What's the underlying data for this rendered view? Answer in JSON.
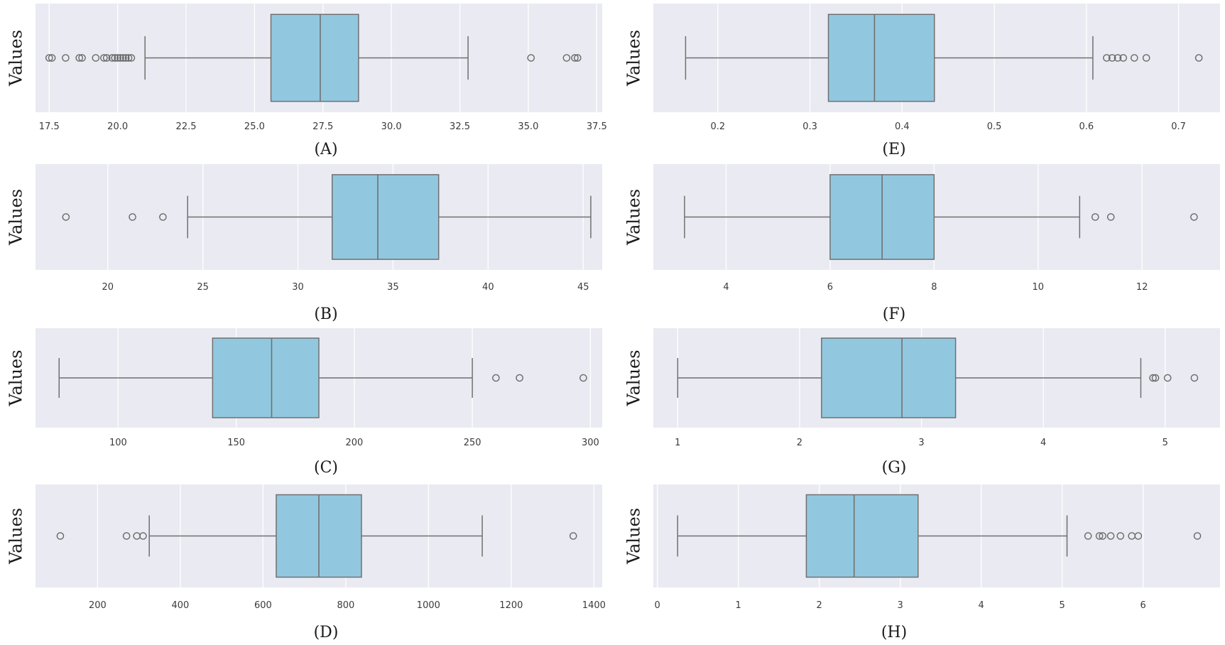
{
  "colors": {
    "plot_background": "#eaeaf2",
    "grid": "#ffffff",
    "box_fill": "#92c8df",
    "line": "#707070",
    "outlier_edge": "#6a6a6a"
  },
  "chart_data": [
    {
      "type": "boxplot",
      "caption": "(A)",
      "ylabel": "Values",
      "xlim": [
        17.0,
        37.7
      ],
      "xticks": [
        17.5,
        20.0,
        22.5,
        25.0,
        27.5,
        30.0,
        32.5,
        35.0,
        37.5
      ],
      "xtick_labels": [
        "17.5",
        "20.0",
        "22.5",
        "25.0",
        "27.5",
        "30.0",
        "32.5",
        "35.0",
        "37.5"
      ],
      "whisker_low": 21.0,
      "q1": 25.6,
      "median": 27.4,
      "q3": 28.8,
      "whisker_high": 32.8,
      "outliers": [
        17.5,
        17.6,
        18.1,
        18.6,
        18.7,
        19.2,
        19.5,
        19.6,
        19.8,
        19.9,
        20.0,
        20.1,
        20.2,
        20.3,
        20.4,
        20.5,
        35.1,
        36.4,
        36.7,
        36.8
      ],
      "grid": true
    },
    {
      "type": "boxplot",
      "caption": "(B)",
      "ylabel": "Values",
      "xlim": [
        16.2,
        46.0
      ],
      "xticks": [
        20,
        25,
        30,
        35,
        40,
        45
      ],
      "xtick_labels": [
        "20",
        "25",
        "30",
        "35",
        "40",
        "45"
      ],
      "whisker_low": 24.2,
      "q1": 31.8,
      "median": 34.2,
      "q3": 37.4,
      "whisker_high": 45.4,
      "outliers": [
        17.8,
        21.3,
        22.9
      ],
      "grid": true
    },
    {
      "type": "boxplot",
      "caption": "(C)",
      "ylabel": "Values",
      "xlim": [
        65,
        305
      ],
      "xticks": [
        100,
        150,
        200,
        250,
        300
      ],
      "xtick_labels": [
        "100",
        "150",
        "200",
        "250",
        "300"
      ],
      "whisker_low": 75,
      "q1": 140,
      "median": 165,
      "q3": 185,
      "whisker_high": 250,
      "outliers": [
        260,
        270,
        297
      ],
      "grid": true
    },
    {
      "type": "boxplot",
      "caption": "(D)",
      "ylabel": "Values",
      "xlim": [
        50,
        1420
      ],
      "xticks": [
        200,
        400,
        600,
        800,
        1000,
        1200,
        1400
      ],
      "xtick_labels": [
        "200",
        "400",
        "600",
        "800",
        "1000",
        "1200",
        "1400"
      ],
      "whisker_low": 325,
      "q1": 632,
      "median": 735,
      "q3": 838,
      "whisker_high": 1130,
      "outliers": [
        110,
        270,
        295,
        310,
        1350
      ],
      "grid": true
    },
    {
      "type": "boxplot",
      "caption": "(E)",
      "ylabel": "Values",
      "xlim": [
        0.13,
        0.745
      ],
      "xticks": [
        0.2,
        0.3,
        0.4,
        0.5,
        0.6,
        0.7
      ],
      "xtick_labels": [
        "0.2",
        "0.3",
        "0.4",
        "0.5",
        "0.6",
        "0.7"
      ],
      "whisker_low": 0.165,
      "q1": 0.32,
      "median": 0.37,
      "q3": 0.435,
      "whisker_high": 0.607,
      "outliers": [
        0.622,
        0.628,
        0.634,
        0.64,
        0.652,
        0.665,
        0.722
      ],
      "grid": true
    },
    {
      "type": "boxplot",
      "caption": "(F)",
      "ylabel": "Values",
      "xlim": [
        2.6,
        13.5
      ],
      "xticks": [
        4,
        6,
        8,
        10,
        12
      ],
      "xtick_labels": [
        "4",
        "6",
        "8",
        "10",
        "12"
      ],
      "whisker_low": 3.2,
      "q1": 6.0,
      "median": 7.0,
      "q3": 8.0,
      "whisker_high": 10.8,
      "outliers": [
        11.1,
        11.4,
        13.0
      ],
      "grid": true
    },
    {
      "type": "boxplot",
      "caption": "(G)",
      "ylabel": "Values",
      "xlim": [
        0.8,
        5.45
      ],
      "xticks": [
        1,
        2,
        3,
        4,
        5
      ],
      "xtick_labels": [
        "1",
        "2",
        "3",
        "4",
        "5"
      ],
      "whisker_low": 1.0,
      "q1": 2.18,
      "median": 2.84,
      "q3": 3.28,
      "whisker_high": 4.8,
      "outliers": [
        4.9,
        4.92,
        5.02,
        5.24
      ],
      "grid": true
    },
    {
      "type": "boxplot",
      "caption": "(H)",
      "ylabel": "Values",
      "xlim": [
        -0.05,
        6.95
      ],
      "xticks": [
        0,
        1,
        2,
        3,
        4,
        5,
        6
      ],
      "xtick_labels": [
        "0",
        "1",
        "2",
        "3",
        "4",
        "5",
        "6"
      ],
      "whisker_low": 0.25,
      "q1": 1.84,
      "median": 2.43,
      "q3": 3.22,
      "whisker_high": 5.06,
      "outliers": [
        5.32,
        5.46,
        5.5,
        5.6,
        5.72,
        5.86,
        5.94,
        6.67
      ],
      "grid": true
    }
  ]
}
